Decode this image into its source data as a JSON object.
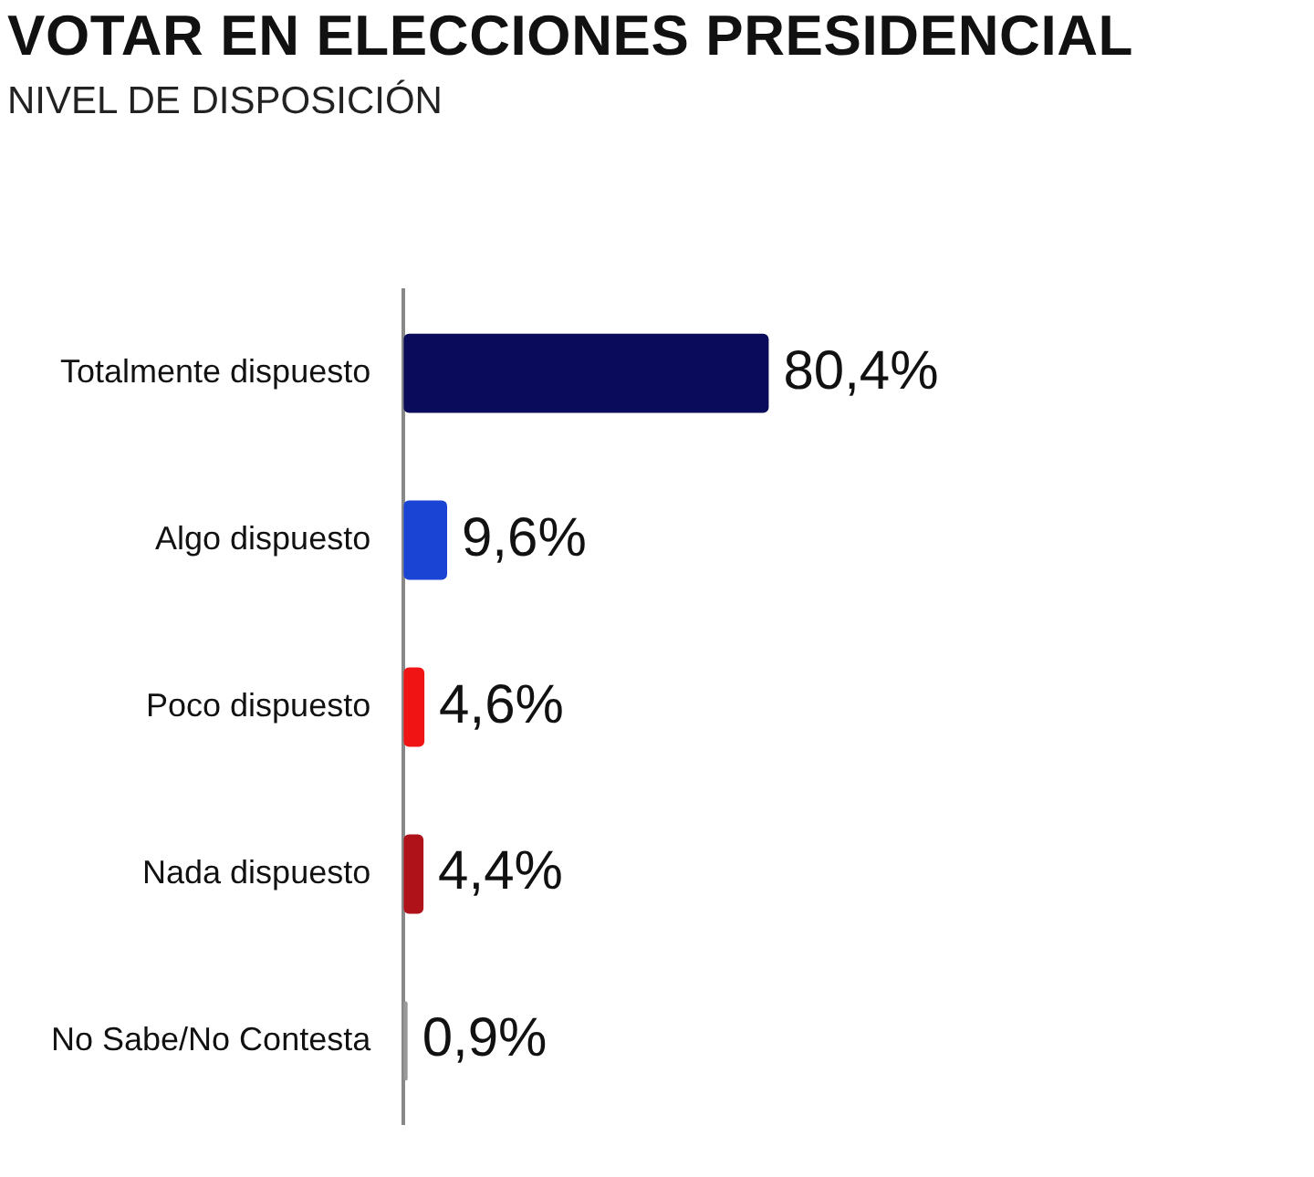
{
  "chart_data": {
    "type": "bar",
    "orientation": "horizontal",
    "title": "VOTAR EN ELECCIONES PRESIDENCIAL",
    "subtitle": "NIVEL DE DISPOSICIÓN",
    "categories": [
      "Totalmente dispuesto",
      "Algo dispuesto",
      "Poco dispuesto",
      "Nada dispuesto",
      "No Sabe/No Contesta"
    ],
    "values": [
      80.4,
      9.6,
      4.6,
      4.4,
      0.9
    ],
    "value_labels": [
      "80,4%",
      "9,6%",
      "4,6%",
      "4,4%",
      "0,9%"
    ],
    "colors": [
      "#0b0b5c",
      "#1a45d4",
      "#f01414",
      "#b0121a",
      "#9a9a9a"
    ],
    "legend": false
  }
}
